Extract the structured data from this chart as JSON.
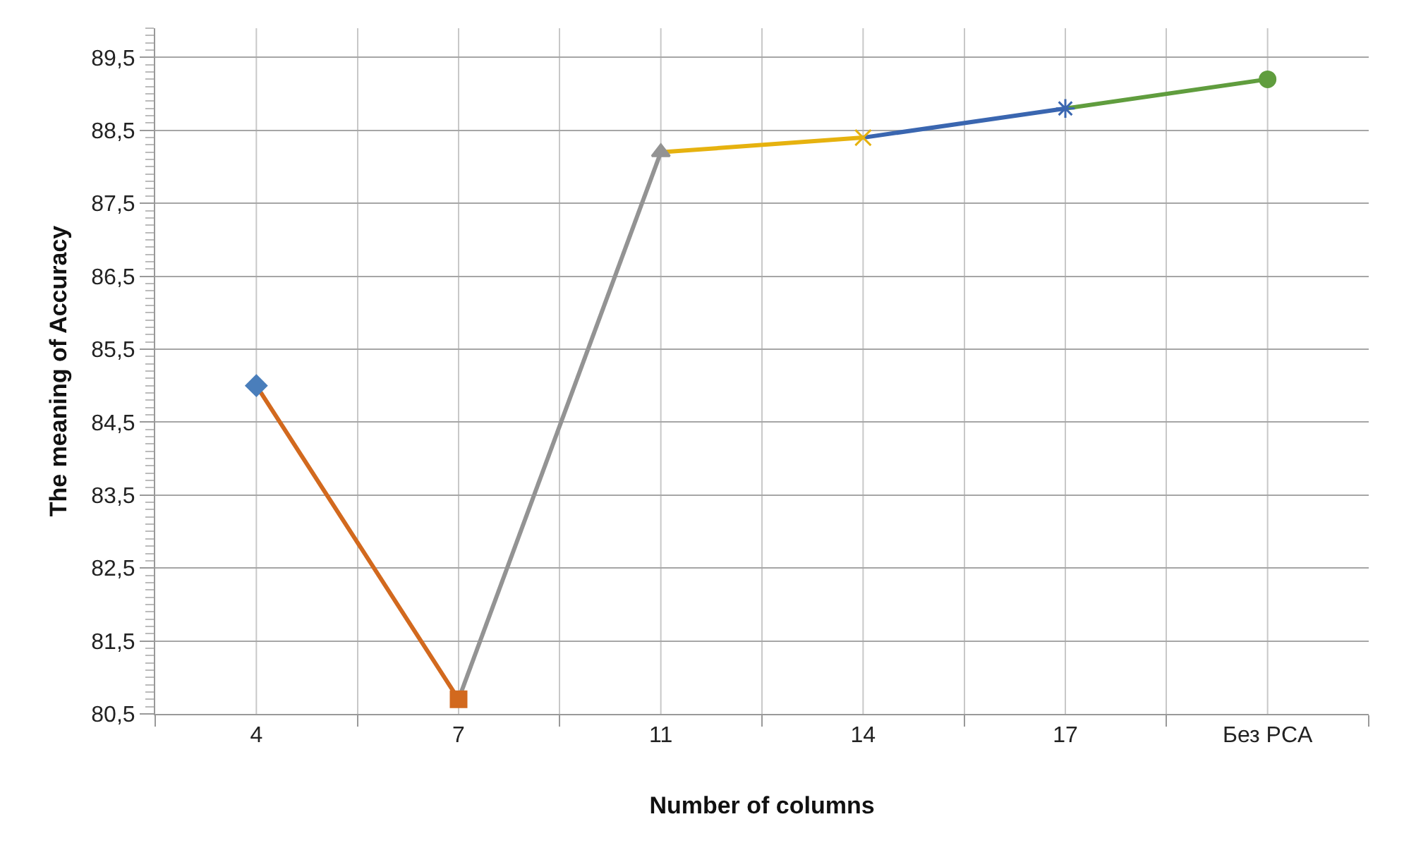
{
  "chart_data": {
    "type": "line",
    "xlabel": "Number of columns",
    "ylabel": "The meaning of Accuracy",
    "categories": [
      "4",
      "7",
      "11",
      "14",
      "17",
      "Без PCA"
    ],
    "series": [
      {
        "x": [
          "4",
          "7"
        ],
        "values": [
          85.0,
          80.7
        ],
        "color": "#d2691e"
      },
      {
        "x": [
          "7",
          "11"
        ],
        "values": [
          80.7,
          88.2
        ],
        "color": "#939393"
      },
      {
        "x": [
          "11",
          "14"
        ],
        "values": [
          88.2,
          88.4
        ],
        "color": "#e6b20f"
      },
      {
        "x": [
          "14",
          "17"
        ],
        "values": [
          88.4,
          88.8
        ],
        "color": "#3a66b0"
      },
      {
        "x": [
          "17",
          "Без PCA"
        ],
        "values": [
          88.8,
          89.2
        ],
        "color": "#609d3e"
      },
      {
        "type": "scatter",
        "values": [
          85.0,
          80.7,
          88.2,
          88.4,
          88.8,
          89.2
        ],
        "colors": [
          "#4a7ebb",
          "#d2691e",
          "#939393",
          "#e6b20f",
          "#3a66b0",
          "#609d3e"
        ],
        "marker": [
          "diamond",
          "square",
          "triangle",
          "cross",
          "star",
          "circle"
        ]
      }
    ],
    "ylim": [
      80.5,
      89.9
    ],
    "yticks": [
      {
        "value": 80.5,
        "label": "80,5"
      },
      {
        "value": 81.5,
        "label": "81,5"
      },
      {
        "value": 82.5,
        "label": "82,5"
      },
      {
        "value": 83.5,
        "label": "83,5"
      },
      {
        "value": 84.5,
        "label": "84,5"
      },
      {
        "value": 85.5,
        "label": "85,5"
      },
      {
        "value": 86.5,
        "label": "86,5"
      },
      {
        "value": 87.5,
        "label": "87,5"
      },
      {
        "value": 88.5,
        "label": "88,5"
      },
      {
        "value": 89.5,
        "label": "89,5"
      }
    ],
    "grid": true,
    "line_style": "solid"
  }
}
